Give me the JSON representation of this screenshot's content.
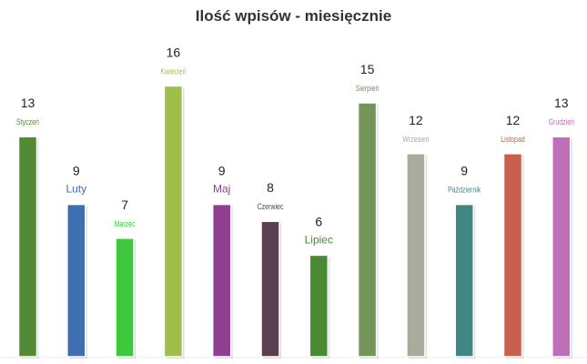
{
  "chart_data": {
    "type": "bar",
    "title": "Ilość wpisów - miesięcznie",
    "categories": [
      "Styczeń",
      "Luty",
      "Marzec",
      "Kwiecień",
      "Maj",
      "Czerwiec",
      "Lipiec",
      "Sierpień",
      "Wrzesień",
      "Październik",
      "Listopad",
      "Grudzień"
    ],
    "values": [
      13,
      9,
      7,
      16,
      9,
      8,
      6,
      15,
      12,
      9,
      12,
      13
    ],
    "colors": [
      "#548a34",
      "#3f6faf",
      "#3ec83e",
      "#9fbf4a",
      "#8f3f8f",
      "#5a3f4f",
      "#4a8a34",
      "#73955a",
      "#a8ac9c",
      "#3f8684",
      "#c85f4f",
      "#bf6fb7"
    ],
    "label_emphasis": [
      false,
      true,
      false,
      false,
      true,
      false,
      true,
      false,
      false,
      false,
      false,
      false
    ],
    "ylim": [
      0,
      16
    ],
    "grid": false,
    "legend": "none"
  }
}
